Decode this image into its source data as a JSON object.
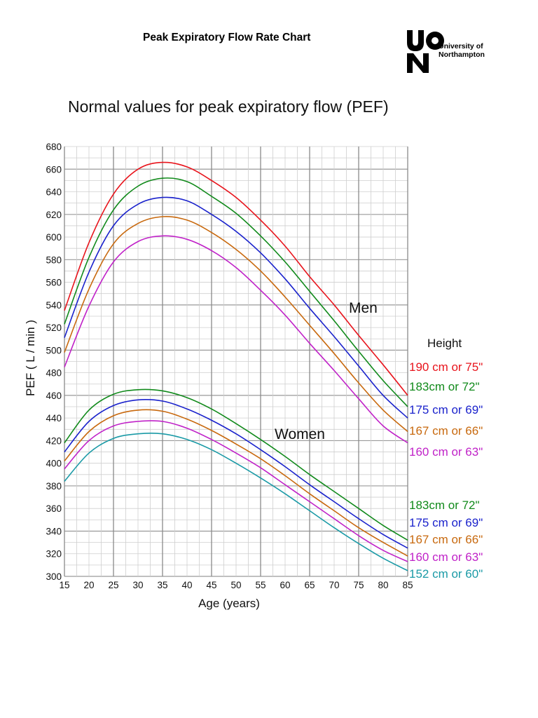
{
  "header": {
    "title": "Peak Expiratory Flow Rate Chart",
    "logo_mark": "UON",
    "logo_text_line1": "University of",
    "logo_text_line2": "Northampton"
  },
  "chart_data": {
    "type": "line",
    "title": "Normal values for peak expiratory flow (PEF)",
    "xlabel": "Age (years)",
    "ylabel": "PEF ( L / min )",
    "xlim": [
      15,
      85
    ],
    "ylim": [
      300,
      680
    ],
    "x_ticks": [
      15,
      20,
      25,
      30,
      35,
      40,
      45,
      50,
      55,
      60,
      65,
      70,
      75,
      80,
      85
    ],
    "y_ticks": [
      300,
      320,
      340,
      360,
      380,
      400,
      420,
      440,
      460,
      480,
      500,
      520,
      540,
      560,
      580,
      600,
      620,
      640,
      660,
      680
    ],
    "grid": true,
    "x": [
      15,
      20,
      25,
      30,
      35,
      40,
      45,
      50,
      55,
      60,
      65,
      70,
      75,
      80,
      85
    ],
    "groups": [
      {
        "label": "Men",
        "legend_header": "Height",
        "series": [
          {
            "name": "190 cm or 75\"",
            "color": "#e8141c",
            "values": [
              535,
              595,
              638,
              660,
              666,
              662,
              650,
              635,
              615,
              592,
              565,
              540,
              513,
              487,
              460
            ]
          },
          {
            "name": "183cm or 72\"",
            "color": "#118a1b",
            "values": [
              523,
              582,
              624,
              645,
              652,
              649,
              636,
              621,
              601,
              578,
              552,
              526,
              499,
              473,
              450
            ]
          },
          {
            "name": "175 cm or 69\"",
            "color": "#1a22cc",
            "values": [
              511,
              569,
              610,
              629,
              635,
              632,
              620,
              605,
              586,
              563,
              537,
              512,
              486,
              460,
              440
            ]
          },
          {
            "name": "167 cm or 66\"",
            "color": "#c8690e",
            "values": [
              498,
              554,
              594,
              612,
              618,
              615,
              604,
              589,
              570,
              547,
              522,
              497,
              471,
              447,
              428
            ]
          },
          {
            "name": "160 cm or 63\"",
            "color": "#c022c8",
            "values": [
              485,
              539,
              578,
              596,
              601,
              598,
              588,
              573,
              553,
              531,
              506,
              482,
              457,
              433,
              418
            ]
          }
        ]
      },
      {
        "label": "Women",
        "legend_header": "",
        "series": [
          {
            "name": "183cm or 72\"",
            "color": "#118a1b",
            "values": [
              418,
              447,
              461,
              465,
              464,
              458,
              448,
              435,
              421,
              406,
              390,
              375,
              360,
              345,
              332
            ]
          },
          {
            "name": "175 cm or 69\"",
            "color": "#1a22cc",
            "values": [
              410,
              437,
              451,
              456,
              455,
              448,
              438,
              426,
              412,
              397,
              381,
              366,
              351,
              337,
              325
            ]
          },
          {
            "name": "167 cm or 66\"",
            "color": "#c8690e",
            "values": [
              402,
              428,
              442,
              447,
              446,
              439,
              429,
              417,
              404,
              389,
              373,
              358,
              343,
              330,
              318
            ]
          },
          {
            "name": "160 cm or 63\"",
            "color": "#c022c8",
            "values": [
              395,
              420,
              433,
              437,
              437,
              431,
              421,
              409,
              396,
              381,
              366,
              351,
              336,
              323,
              313
            ]
          },
          {
            "name": "152 cm or 60\"",
            "color": "#1a9aa6",
            "values": [
              384,
              409,
              422,
              426,
              426,
              421,
              412,
              400,
              387,
              373,
              358,
              343,
              329,
              316,
              305
            ]
          }
        ]
      }
    ]
  }
}
